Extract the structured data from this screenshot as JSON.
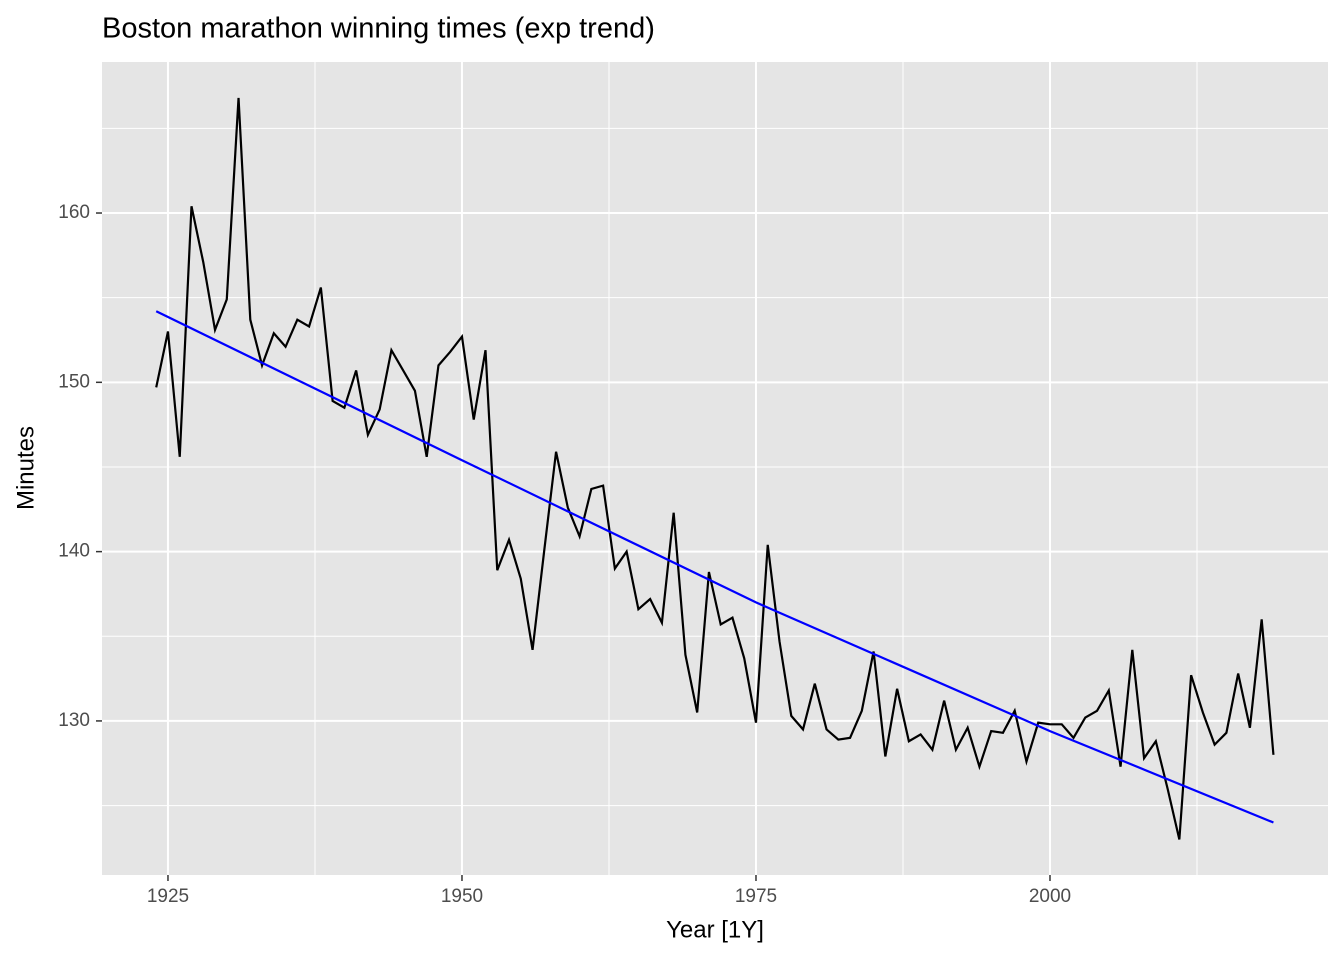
{
  "chart_data": {
    "type": "line",
    "title": "Boston marathon winning times (exp trend)",
    "x_label": "Year [1Y]",
    "y_label": "Minutes",
    "xlim": [
      1919.39,
      2023.64
    ],
    "ylim": [
      120.9,
      168.92
    ],
    "xticks": [
      1925,
      1950,
      1975,
      2000
    ],
    "yticks": [
      130,
      140,
      150,
      160
    ],
    "xminorticks": [
      1937.5,
      1962.5,
      1987.5,
      2012.5
    ],
    "yminorticks": [
      125,
      135,
      145,
      155,
      165
    ],
    "grid": true,
    "panel_color": "#e5e5e5",
    "series": [
      {
        "color": "#000000",
        "x": [
          1924,
          1925,
          1926,
          1927,
          1928,
          1929,
          1930,
          1931,
          1932,
          1933,
          1934,
          1935,
          1936,
          1937,
          1938,
          1939,
          1940,
          1941,
          1942,
          1943,
          1944,
          1945,
          1946,
          1947,
          1948,
          1949,
          1950,
          1951,
          1952,
          1953,
          1954,
          1955,
          1956,
          1957,
          1958,
          1959,
          1960,
          1961,
          1962,
          1963,
          1964,
          1965,
          1966,
          1967,
          1968,
          1969,
          1970,
          1971,
          1972,
          1973,
          1974,
          1975,
          1976,
          1977,
          1978,
          1979,
          1980,
          1981,
          1982,
          1983,
          1984,
          1985,
          1986,
          1987,
          1988,
          1989,
          1990,
          1991,
          1992,
          1993,
          1994,
          1995,
          1996,
          1997,
          1998,
          1999,
          2000,
          2001,
          2002,
          2003,
          2004,
          2005,
          2006,
          2007,
          2008,
          2009,
          2010,
          2011,
          2012,
          2013,
          2014,
          2015,
          2016,
          2017,
          2018,
          2019
        ],
        "values": [
          149.7,
          153.0,
          145.6,
          160.4,
          157.1,
          153.1,
          154.9,
          166.8,
          153.7,
          151.0,
          152.9,
          152.1,
          153.7,
          153.3,
          155.6,
          148.9,
          148.5,
          150.7,
          146.9,
          148.4,
          151.9,
          150.7,
          149.5,
          145.6,
          151.0,
          151.8,
          152.7,
          147.8,
          151.9,
          138.9,
          140.7,
          138.4,
          134.2,
          140.1,
          145.9,
          142.6,
          140.9,
          143.7,
          143.9,
          139.0,
          140.0,
          136.6,
          137.2,
          135.8,
          142.3,
          133.9,
          130.5,
          138.8,
          135.7,
          136.1,
          133.7,
          129.9,
          140.4,
          134.7,
          130.3,
          129.5,
          132.2,
          129.5,
          128.9,
          129.0,
          130.6,
          134.1,
          127.9,
          131.9,
          128.8,
          129.2,
          128.3,
          131.2,
          128.3,
          129.6,
          127.3,
          129.4,
          129.3,
          130.6,
          127.6,
          129.9,
          129.8,
          129.8,
          129.0,
          130.2,
          130.6,
          131.8,
          127.3,
          134.2,
          127.8,
          128.8,
          126.0,
          123.0,
          132.7,
          130.5,
          128.6,
          129.3,
          132.8,
          129.6,
          136.0,
          128.0
        ]
      },
      {
        "color": "#0000ff",
        "x": [
          1924,
          1950,
          1975,
          2000,
          2019
        ],
        "values": [
          154.2,
          145.4,
          137.0,
          129.4,
          124.0
        ]
      }
    ]
  }
}
